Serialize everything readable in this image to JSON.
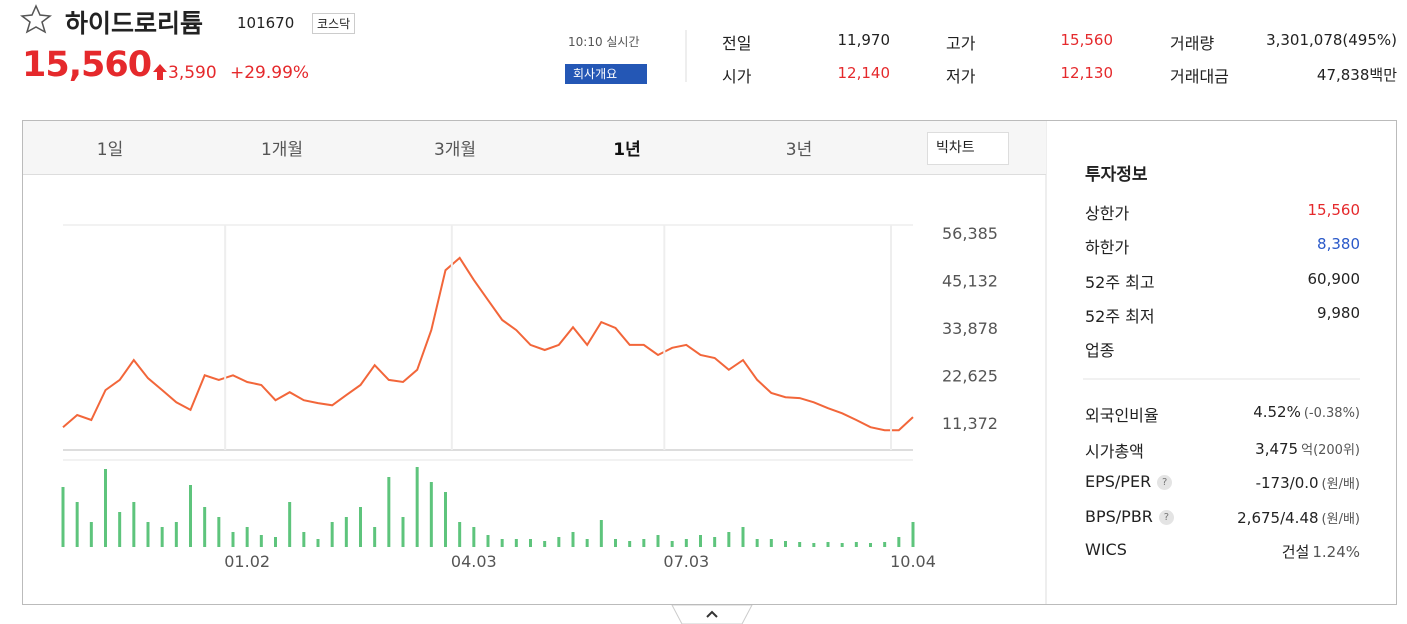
{
  "header": {
    "name": "하이드로리튬",
    "code": "101670",
    "market": "코스닥",
    "price": "15,560",
    "change": "3,590",
    "rate": "+29.99%",
    "time": "10:10 실시간",
    "company_button": "회사개요"
  },
  "quote": [
    {
      "label": "전일",
      "value": "11,970"
    },
    {
      "label": "시가",
      "value": "12,140"
    },
    {
      "label": "고가",
      "value": "15,560"
    },
    {
      "label": "저가",
      "value": "12,130"
    },
    {
      "label": "거래량",
      "value": "3,301,078(495%)"
    },
    {
      "label": "거래대금",
      "value": "47,838백만"
    }
  ],
  "tabs": [
    "1일",
    "1개월",
    "3개월",
    "1년",
    "3년"
  ],
  "big_chart": "빅차트",
  "investment": {
    "title": "투자정보",
    "rows": [
      {
        "label": "상한가",
        "value": "15,560"
      },
      {
        "label": "하한가",
        "value": "8,380"
      },
      {
        "label": "52주 최고",
        "value": "60,900"
      },
      {
        "label": "52주 최저",
        "value": "9,980"
      },
      {
        "label": "업종"
      }
    ],
    "rows2": [
      {
        "label": "외국인비율",
        "value": "4.52%",
        "note": "(-0.38%)"
      },
      {
        "label": "시가총액",
        "value": "3,475",
        "note": "억(200위)"
      },
      {
        "label": "EPS/PER",
        "help": "?",
        "value": "-173/0.0",
        "note": "(원/배)"
      },
      {
        "label": "BPS/PBR",
        "help": "?",
        "value": "2,675/4.48",
        "note": "(원/배)"
      },
      {
        "label": "WICS",
        "value": "건설",
        "note": "1.24%"
      }
    ]
  },
  "chart_data": [
    {
      "type": "line",
      "color": "#f2663a",
      "ylim": [
        5000,
        58300
      ],
      "yticks": [
        {
          "value": 11372,
          "label": "11,372"
        },
        {
          "value": 22625,
          "label": "22,625"
        },
        {
          "value": 33878,
          "label": "33,878"
        },
        {
          "value": 45132,
          "label": "45,132"
        },
        {
          "value": 56385,
          "label": "56,385"
        }
      ],
      "values": [
        10400,
        13300,
        12100,
        19200,
        21600,
        26300,
        22000,
        19200,
        16300,
        14500,
        22700,
        21600,
        22700,
        21100,
        20400,
        16800,
        18700,
        16800,
        16100,
        15600,
        18000,
        20400,
        25100,
        21600,
        21100,
        24000,
        33400,
        47600,
        50500,
        45300,
        40500,
        35800,
        33400,
        29900,
        28700,
        29900,
        34100,
        29900,
        35300,
        33900,
        29900,
        29900,
        27500,
        29200,
        29900,
        27500,
        26800,
        24000,
        26300,
        21600,
        18500,
        17500,
        17300,
        16300,
        14900,
        13700,
        12100,
        10400,
        9700,
        9700,
        12800
      ]
    },
    {
      "type": "bar",
      "color": "#5ec47c",
      "ylim": [
        0,
        87
      ],
      "categories": [
        null,
        null,
        null,
        null,
        null,
        null,
        null,
        null,
        null,
        null,
        null,
        null,
        null,
        "01.02",
        null,
        null,
        null,
        null,
        null,
        null,
        null,
        null,
        null,
        null,
        null,
        null,
        null,
        null,
        null,
        "04.03",
        null,
        null,
        null,
        null,
        null,
        null,
        null,
        null,
        null,
        null,
        null,
        null,
        null,
        null,
        "07.03",
        null,
        null,
        null,
        null,
        null,
        null,
        null,
        null,
        null,
        null,
        null,
        null,
        null,
        null,
        null,
        "10.04"
      ],
      "values": [
        60,
        45,
        25,
        78,
        35,
        45,
        25,
        20,
        25,
        62,
        40,
        30,
        15,
        20,
        12,
        10,
        45,
        15,
        8,
        25,
        30,
        40,
        20,
        70,
        30,
        80,
        65,
        55,
        25,
        20,
        12,
        8,
        8,
        8,
        6,
        10,
        15,
        8,
        27,
        8,
        6,
        8,
        12,
        6,
        8,
        12,
        10,
        15,
        20,
        8,
        8,
        6,
        5,
        4,
        5,
        4,
        5,
        4,
        5,
        10,
        25
      ]
    }
  ]
}
